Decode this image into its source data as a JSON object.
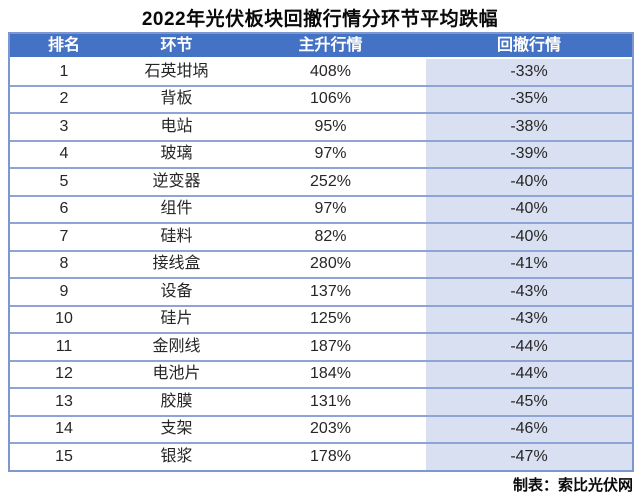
{
  "page": {
    "title": "2022年光伏板块回撤行情分环节平均跌幅",
    "footer_note": "制表：索比光伏网"
  },
  "colors": {
    "header_bg": "#4472c4",
    "header_text": "#ffffff",
    "drawdown_column_bg": "#d9e0f2",
    "row_border": "#8fa3d6",
    "outer_border": "#7d98ce",
    "body_text": "#262626"
  },
  "chart_data": {
    "type": "table",
    "title": "2022年光伏板块回撤行情分环节平均跌幅",
    "columns": [
      "排名",
      "环节",
      "主升行情",
      "回撤行情"
    ],
    "rows": [
      [
        "1",
        "石英坩埚",
        "408%",
        "-33%"
      ],
      [
        "2",
        "背板",
        "106%",
        "-35%"
      ],
      [
        "3",
        "电站",
        "95%",
        "-38%"
      ],
      [
        "4",
        "玻璃",
        "97%",
        "-39%"
      ],
      [
        "5",
        "逆变器",
        "252%",
        "-40%"
      ],
      [
        "6",
        "组件",
        "97%",
        "-40%"
      ],
      [
        "7",
        "硅料",
        "82%",
        "-40%"
      ],
      [
        "8",
        "接线盒",
        "280%",
        "-41%"
      ],
      [
        "9",
        "设备",
        "137%",
        "-43%"
      ],
      [
        "10",
        "硅片",
        "125%",
        "-43%"
      ],
      [
        "11",
        "金刚线",
        "187%",
        "-44%"
      ],
      [
        "12",
        "电池片",
        "184%",
        "-44%"
      ],
      [
        "13",
        "胶膜",
        "131%",
        "-45%"
      ],
      [
        "14",
        "支架",
        "203%",
        "-46%"
      ],
      [
        "15",
        "银浆",
        "178%",
        "-47%"
      ]
    ],
    "source_note": "制表：索比光伏网",
    "layout": {
      "legend": "none",
      "grid": "horizontal-row-borders",
      "drawdown_column_highlighted": true
    }
  }
}
